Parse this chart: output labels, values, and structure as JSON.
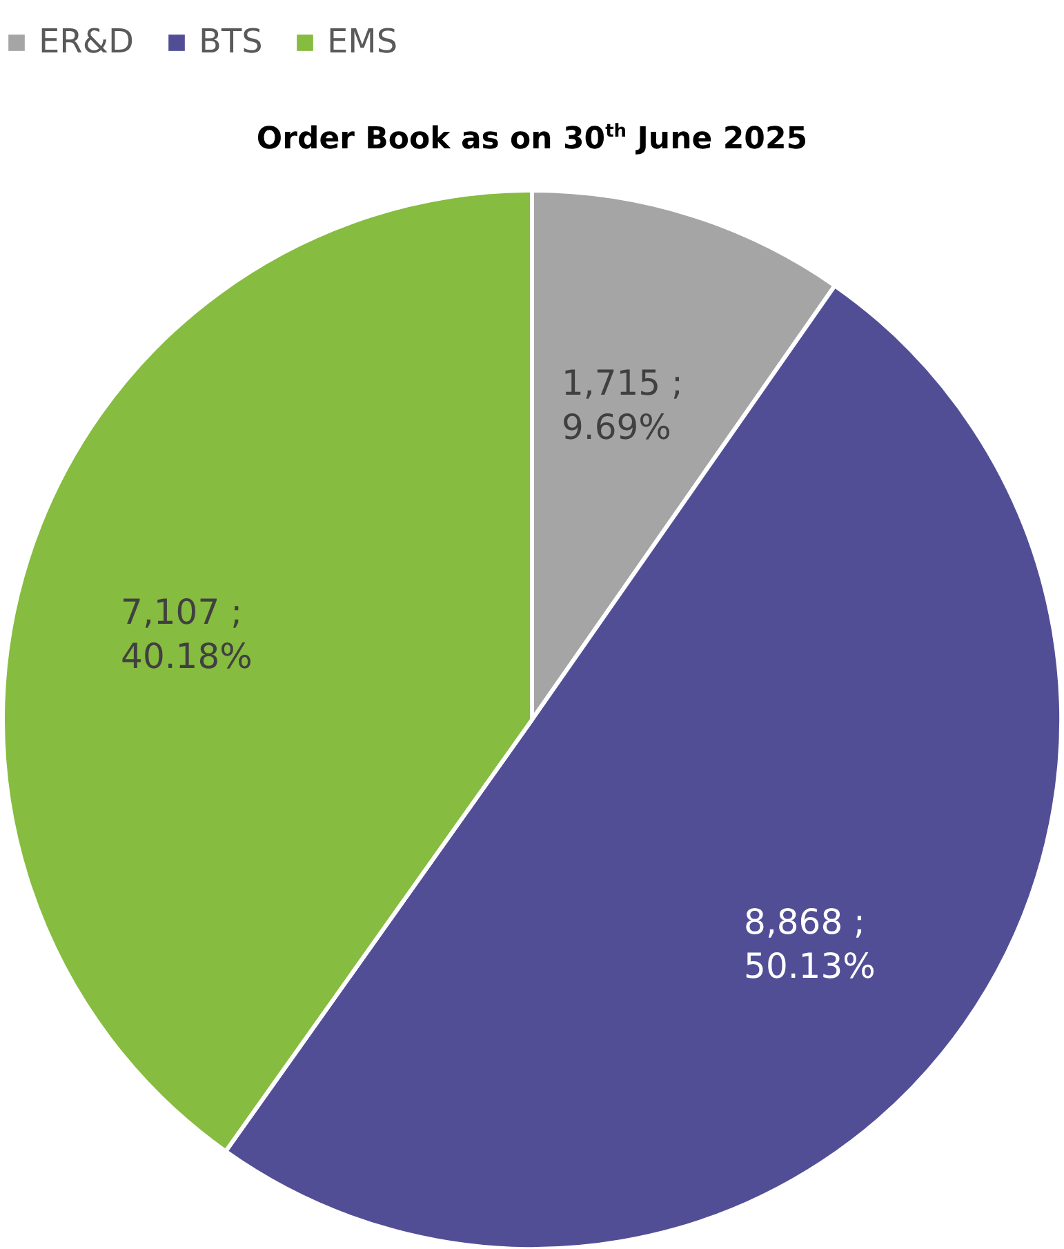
{
  "chart_data": {
    "type": "pie",
    "title": "Order Book as on 30$^{th}$ June 2025",
    "categories": [
      "ER&D",
      "BTS",
      "EMS"
    ],
    "values": [
      1715,
      8868,
      7107
    ],
    "colors": [
      "#a5a5a5",
      "#524e96",
      "#86bc3f"
    ],
    "value_labels": [
      "1,715 ;\n9.69%",
      "8,868 ;\n50.13%",
      "7,107 ;\n40.18%"
    ],
    "legend": "top"
  }
}
